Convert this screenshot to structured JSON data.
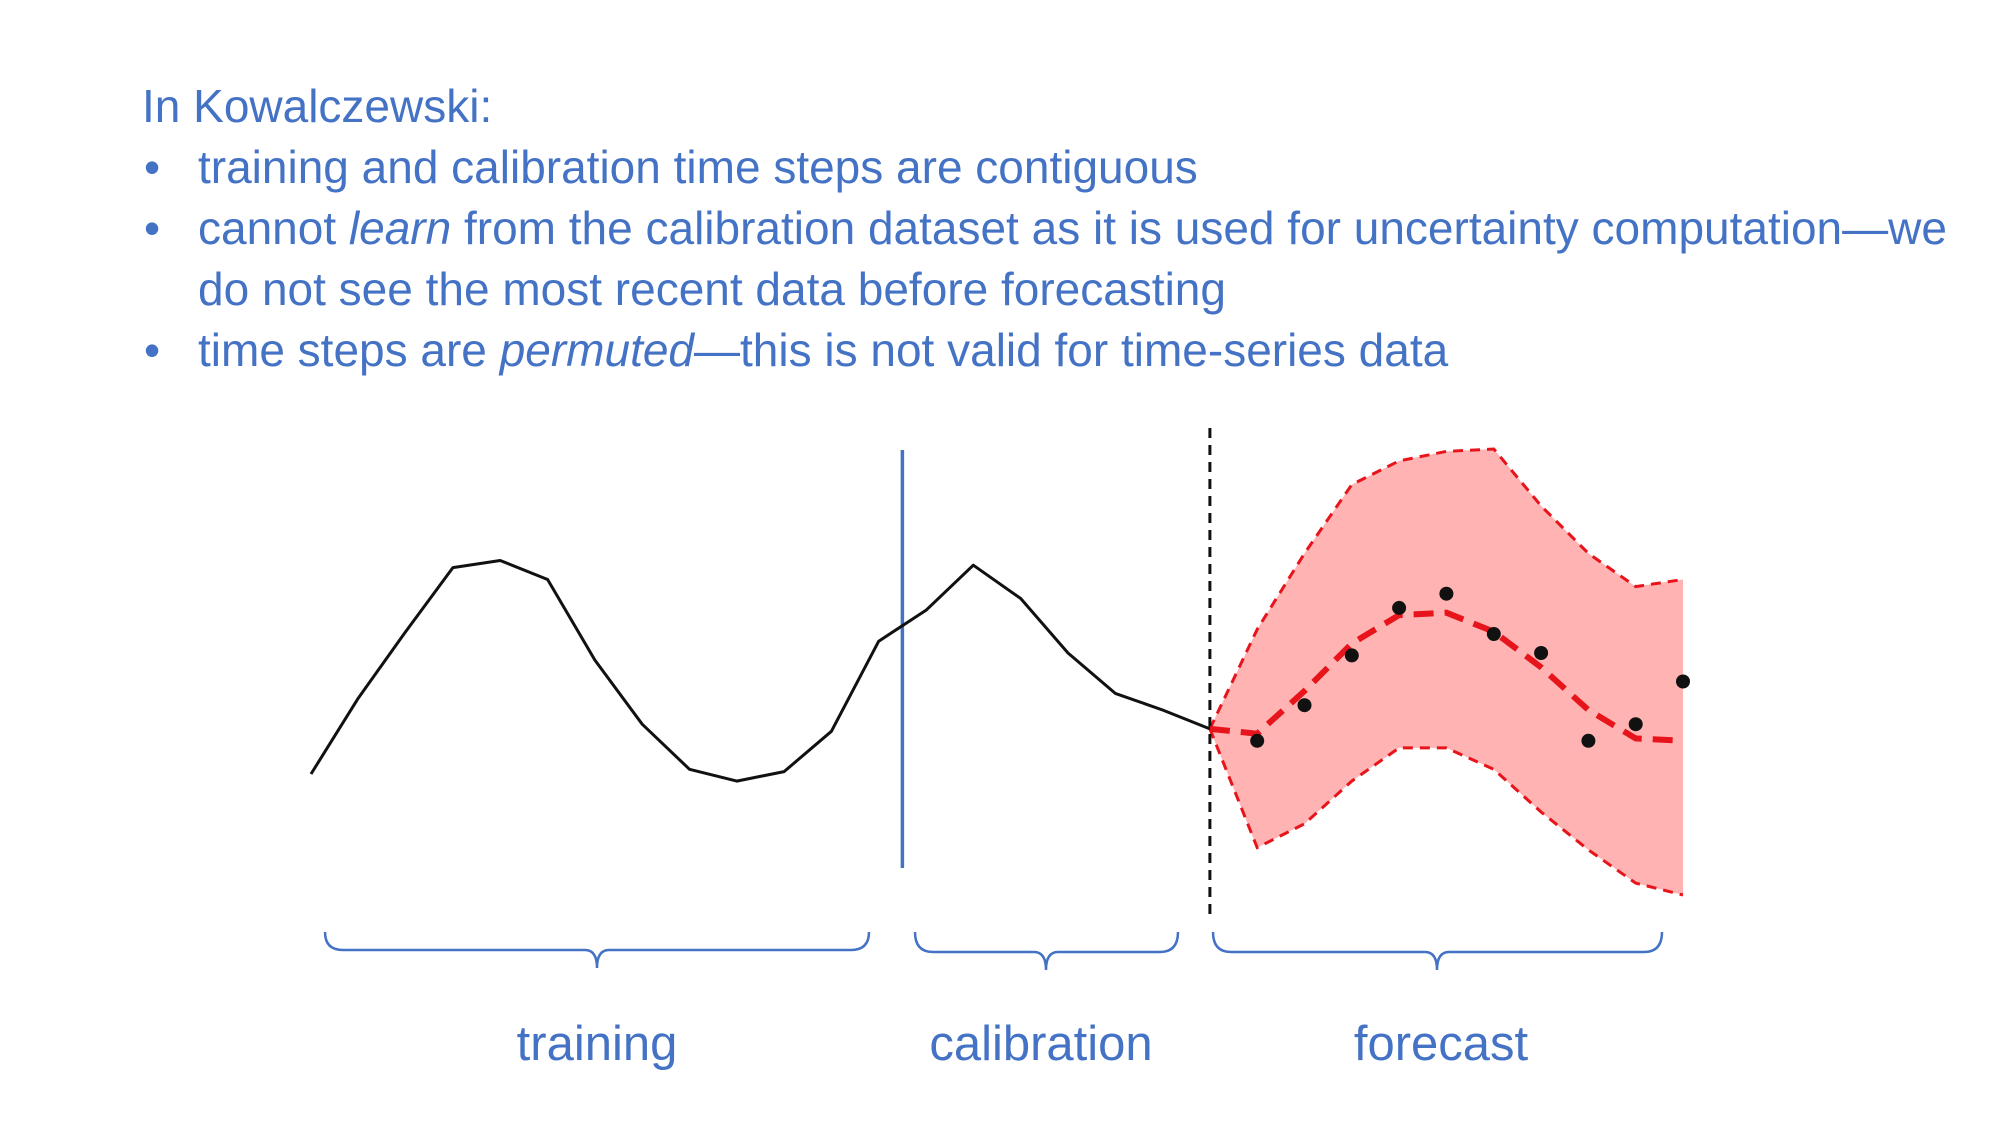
{
  "heading": "In Kowalczewski:",
  "bullet_marker": "•",
  "bullets": [
    {
      "parts": [
        {
          "text": "training and calibration time steps are contiguous",
          "italic": false
        }
      ]
    },
    {
      "parts": [
        {
          "text": "cannot ",
          "italic": false
        },
        {
          "text": "learn",
          "italic": true
        },
        {
          "text": " from the calibration dataset as it is used for uncertainty computation—we do not see the most recent data before forecasting",
          "italic": false
        }
      ]
    },
    {
      "parts": [
        {
          "text": "time steps are ",
          "italic": false
        },
        {
          "text": "permuted",
          "italic": true
        },
        {
          "text": "—this is not valid for time-series data",
          "italic": false
        }
      ]
    }
  ],
  "regions": {
    "training": "training",
    "calibration": "calibration",
    "forecast": "forecast"
  },
  "colors": {
    "text": "#4472c4",
    "series_line": "#111111",
    "forecast_mean": "#e8141b",
    "band_fill": "#ffb3b3",
    "observed_points": "#111111",
    "divider": "#4472c4"
  },
  "chart_data": {
    "type": "line",
    "history": [
      [
        0,
        0.1
      ],
      [
        1,
        0.42
      ],
      [
        2,
        0.7
      ],
      [
        3,
        0.97
      ],
      [
        4,
        1.0
      ],
      [
        5,
        0.92
      ],
      [
        6,
        0.58
      ],
      [
        7,
        0.31
      ],
      [
        8,
        0.12
      ],
      [
        9,
        0.07
      ],
      [
        10,
        0.11
      ],
      [
        11,
        0.28
      ],
      [
        12,
        0.66
      ],
      [
        13,
        0.79
      ],
      [
        14,
        0.98
      ],
      [
        15,
        0.84
      ],
      [
        16,
        0.61
      ],
      [
        17,
        0.44
      ],
      [
        18,
        0.37
      ],
      [
        19,
        0.29
      ]
    ],
    "forecast_mean": [
      [
        19,
        0.29
      ],
      [
        20,
        0.27
      ],
      [
        21,
        0.45
      ],
      [
        22,
        0.65
      ],
      [
        23,
        0.77
      ],
      [
        24,
        0.78
      ],
      [
        25,
        0.7
      ],
      [
        26,
        0.55
      ],
      [
        27,
        0.37
      ],
      [
        28,
        0.25
      ],
      [
        29,
        0.24
      ]
    ],
    "forecast_upper": [
      [
        19,
        0.29
      ],
      [
        20,
        0.71
      ],
      [
        21,
        1.03
      ],
      [
        22,
        1.32
      ],
      [
        23,
        1.42
      ],
      [
        24,
        1.46
      ],
      [
        25,
        1.47
      ],
      [
        26,
        1.23
      ],
      [
        27,
        1.03
      ],
      [
        28,
        0.89
      ],
      [
        29,
        0.92
      ]
    ],
    "forecast_lower": [
      [
        19,
        0.29
      ],
      [
        20,
        -0.21
      ],
      [
        21,
        -0.11
      ],
      [
        22,
        0.07
      ],
      [
        23,
        0.21
      ],
      [
        24,
        0.21
      ],
      [
        25,
        0.12
      ],
      [
        26,
        -0.06
      ],
      [
        27,
        -0.22
      ],
      [
        28,
        -0.36
      ],
      [
        29,
        -0.41
      ]
    ],
    "observed": [
      [
        20,
        0.24
      ],
      [
        21,
        0.39
      ],
      [
        22,
        0.6
      ],
      [
        23,
        0.8
      ],
      [
        24,
        0.86
      ],
      [
        25,
        0.69
      ],
      [
        26,
        0.61
      ],
      [
        27,
        0.24
      ],
      [
        28,
        0.31
      ],
      [
        29,
        0.49
      ]
    ],
    "xlim": [
      0,
      29
    ],
    "ylim": [
      -0.41,
      1.47
    ],
    "training_calibration_split": 12.5,
    "calibration_forecast_split": 19
  }
}
